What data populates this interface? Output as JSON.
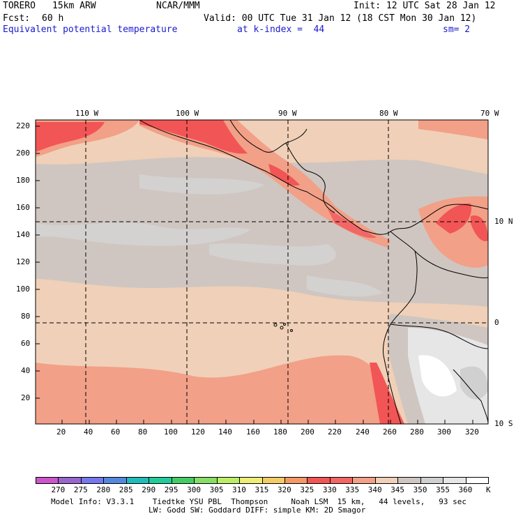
{
  "header": {
    "model": "TORERO",
    "grid": "15km ARW",
    "org": "NCAR/MMM",
    "init": "Init: 12 UTC Sat 28 Jan 12",
    "fcst_label": "Fcst:",
    "fcst_hours": "60 h",
    "valid": "Valid: 00 UTC Tue 31 Jan 12 (18 CST Mon 30 Jan 12)",
    "field": "Equivalent potential temperature",
    "level": "at k-index =  44",
    "smoothing": "sm= 2"
  },
  "axes": {
    "x_ticks": [
      "20",
      "40",
      "60",
      "80",
      "100",
      "120",
      "140",
      "160",
      "180",
      "200",
      "220",
      "240",
      "260",
      "280",
      "300",
      "320"
    ],
    "y_ticks": [
      "20",
      "40",
      "60",
      "80",
      "100",
      "120",
      "140",
      "160",
      "180",
      "200",
      "220"
    ],
    "lon_labels": [
      "110 W",
      "100 W",
      "90 W",
      "80 W",
      "70 W"
    ],
    "lat_labels": [
      "10 N",
      "0",
      "10 S"
    ]
  },
  "legend": {
    "values": [
      "270",
      "275",
      "280",
      "285",
      "290",
      "295",
      "300",
      "305",
      "310",
      "315",
      "320",
      "325",
      "330",
      "335",
      "340",
      "345",
      "350",
      "355",
      "360"
    ],
    "unit": "K",
    "colors": [
      "#cc55cc",
      "#9966cc",
      "#7777ee",
      "#5588dd",
      "#22bbbb",
      "#22cc99",
      "#44cc66",
      "#88dd66",
      "#bbee66",
      "#eeee77",
      "#f2cc66",
      "#f29966",
      "#f25555",
      "#f26666",
      "#f2a088",
      "#f0d0b8",
      "#cfc6c1",
      "#d0d0d0",
      "#e6e6e6",
      "#ffffff"
    ]
  },
  "footer": {
    "line1": "Model Info: V3.3.1    Tiedtke YSU PBL  Thompson     Noah LSM  15 km,   44 levels,   93 sec",
    "line2": "LW: Godd SW: Goddard DIFF: simple KM: 2D Smagor"
  }
}
